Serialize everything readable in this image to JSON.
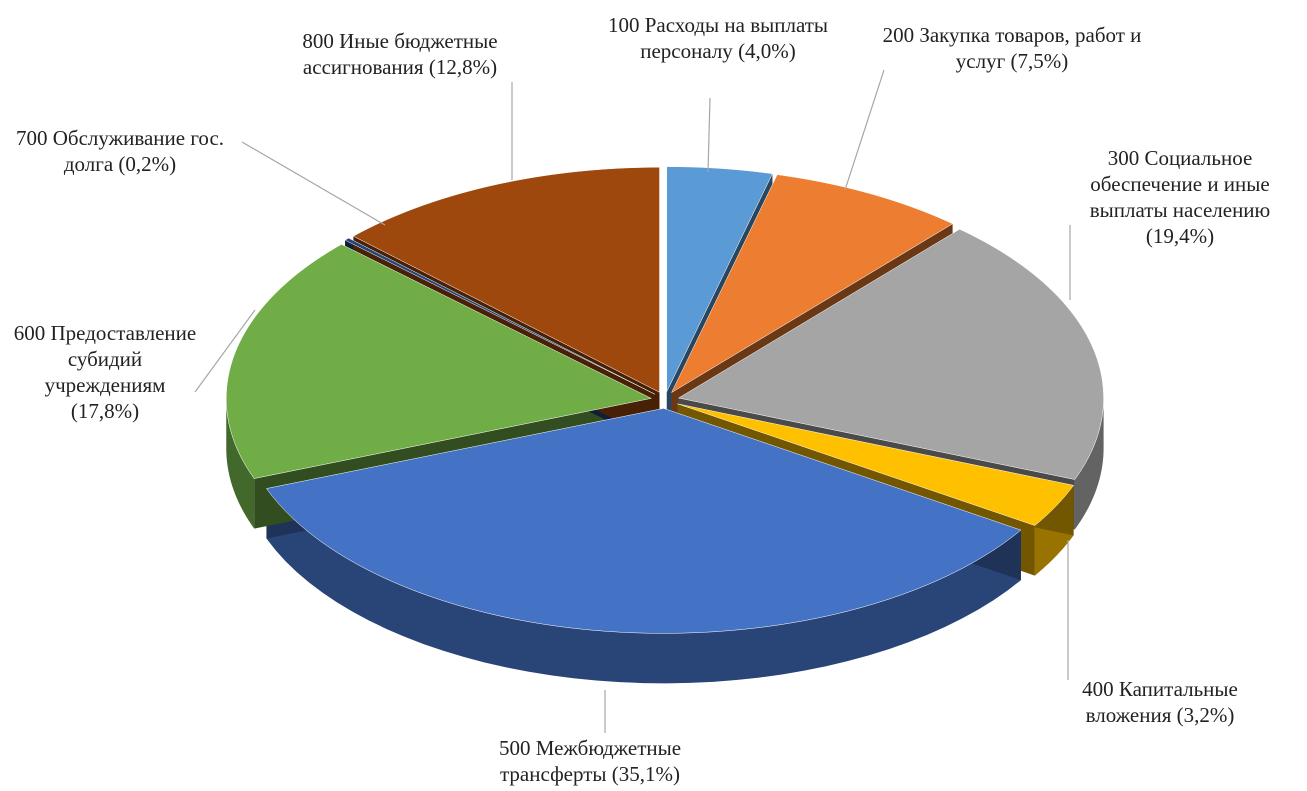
{
  "chart_data": {
    "type": "pie",
    "categories": [
      "100 Расходы на выплаты персоналу",
      "200 Закупка товаров, работ и услуг",
      "300 Социальное обеспечение и иные выплаты населению",
      "400 Капитальные вложения",
      "500 Межбюджетные трансферты",
      "600 Предоставление субидий учреждениям",
      "700 Обслуживание гос. долга",
      "800 Иные бюджетные ассигнования"
    ],
    "values": [
      4.0,
      7.5,
      19.4,
      3.2,
      35.1,
      17.8,
      0.2,
      12.8
    ],
    "value_labels": [
      "(4,0%)",
      "(7,5%)",
      "(19,4%)",
      "(3,2%)",
      "(35,1%)",
      "(17,8%)",
      "(0,2%)",
      "(12,8%)"
    ],
    "colors": [
      "#5b9bd5",
      "#ed7d31",
      "#a5a5a5",
      "#ffc000",
      "#4472c4",
      "#70ad47",
      "#264478",
      "#9e480e"
    ]
  }
}
